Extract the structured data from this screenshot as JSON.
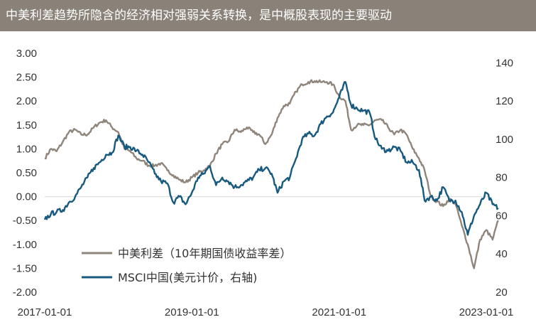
{
  "title": "中美利差趋势所隐含的经济相对强弱关系转换，是中概股表现的主要驱动",
  "chart_data": {
    "type": "line",
    "title": "中美利差趋势所隐含的经济相对强弱关系转换，是中概股表现的主要驱动",
    "x_ticks": [
      "2017-01-01",
      "2019-01-01",
      "2021-01-01",
      "2023-01-01"
    ],
    "x_range": [
      "2017-01-01",
      "2023-01-01"
    ],
    "y_left": {
      "range": [
        -2.0,
        3.0
      ],
      "ticks": [
        "3.00",
        "2.50",
        "2.00",
        "1.50",
        "1.00",
        "0.50",
        "0.00",
        "-0.50",
        "-1.00",
        "-1.50",
        "-2.00"
      ]
    },
    "y_right": {
      "range": [
        20,
        145
      ],
      "ticks": [
        "140",
        "120",
        "100",
        "80",
        "60",
        "40",
        "20"
      ]
    },
    "grid": false,
    "legend": "bottom-left",
    "series": [
      {
        "name": "中美利差（10年期国债收益率差）",
        "axis": "left",
        "color": "#8f857b",
        "points": [
          [
            "2017-01-01",
            0.8
          ],
          [
            "2017-02-01",
            1.0
          ],
          [
            "2017-03-01",
            0.95
          ],
          [
            "2017-04-01",
            1.15
          ],
          [
            "2017-05-01",
            1.35
          ],
          [
            "2017-06-01",
            1.4
          ],
          [
            "2017-07-01",
            1.3
          ],
          [
            "2017-08-01",
            1.3
          ],
          [
            "2017-09-01",
            1.45
          ],
          [
            "2017-10-01",
            1.55
          ],
          [
            "2017-11-01",
            1.6
          ],
          [
            "2017-12-01",
            1.45
          ],
          [
            "2018-01-01",
            1.35
          ],
          [
            "2018-02-01",
            1.0
          ],
          [
            "2018-03-01",
            0.95
          ],
          [
            "2018-04-01",
            0.8
          ],
          [
            "2018-05-01",
            0.75
          ],
          [
            "2018-06-01",
            0.65
          ],
          [
            "2018-07-01",
            0.65
          ],
          [
            "2018-08-01",
            0.7
          ],
          [
            "2018-09-01",
            0.55
          ],
          [
            "2018-10-01",
            0.45
          ],
          [
            "2018-11-01",
            0.35
          ],
          [
            "2018-12-01",
            0.3
          ],
          [
            "2019-01-01",
            0.4
          ],
          [
            "2019-02-01",
            0.5
          ],
          [
            "2019-03-01",
            0.55
          ],
          [
            "2019-04-01",
            0.65
          ],
          [
            "2019-05-01",
            0.9
          ],
          [
            "2019-06-01",
            1.1
          ],
          [
            "2019-07-01",
            1.15
          ],
          [
            "2019-08-01",
            1.4
          ],
          [
            "2019-09-01",
            1.35
          ],
          [
            "2019-10-01",
            1.45
          ],
          [
            "2019-11-01",
            1.35
          ],
          [
            "2019-12-01",
            1.3
          ],
          [
            "2020-01-01",
            1.1
          ],
          [
            "2020-02-01",
            1.3
          ],
          [
            "2020-03-01",
            1.65
          ],
          [
            "2020-04-01",
            1.9
          ],
          [
            "2020-05-01",
            1.95
          ],
          [
            "2020-06-01",
            2.2
          ],
          [
            "2020-07-01",
            2.35
          ],
          [
            "2020-08-01",
            2.4
          ],
          [
            "2020-09-01",
            2.42
          ],
          [
            "2020-10-01",
            2.4
          ],
          [
            "2020-11-01",
            2.4
          ],
          [
            "2020-12-01",
            2.35
          ],
          [
            "2021-01-01",
            2.1
          ],
          [
            "2021-02-01",
            2.0
          ],
          [
            "2021-03-01",
            1.4
          ],
          [
            "2021-04-01",
            1.5
          ],
          [
            "2021-05-01",
            1.5
          ],
          [
            "2021-06-01",
            1.5
          ],
          [
            "2021-07-01",
            1.6
          ],
          [
            "2021-08-01",
            1.6
          ],
          [
            "2021-09-01",
            1.45
          ],
          [
            "2021-10-01",
            1.3
          ],
          [
            "2021-11-01",
            1.4
          ],
          [
            "2021-12-01",
            1.3
          ],
          [
            "2022-01-01",
            1.0
          ],
          [
            "2022-02-01",
            0.8
          ],
          [
            "2022-03-01",
            0.55
          ],
          [
            "2022-04-01",
            0.0
          ],
          [
            "2022-05-01",
            -0.1
          ],
          [
            "2022-06-01",
            -0.2
          ],
          [
            "2022-07-01",
            -0.05
          ],
          [
            "2022-08-01",
            -0.15
          ],
          [
            "2022-09-01",
            -0.6
          ],
          [
            "2022-10-01",
            -1.0
          ],
          [
            "2022-11-01",
            -1.5
          ],
          [
            "2022-12-01",
            -0.9
          ],
          [
            "2023-01-01",
            -0.7
          ],
          [
            "2023-02-01",
            -0.9
          ],
          [
            "2023-03-01",
            -0.5
          ]
        ]
      },
      {
        "name": "MSCI中国(美元计价，右轴)",
        "axis": "right",
        "color": "#17597f",
        "points": [
          [
            "2017-01-01",
            58
          ],
          [
            "2017-02-01",
            61
          ],
          [
            "2017-03-01",
            62
          ],
          [
            "2017-04-01",
            63
          ],
          [
            "2017-05-01",
            67
          ],
          [
            "2017-06-01",
            70
          ],
          [
            "2017-07-01",
            75
          ],
          [
            "2017-08-01",
            80
          ],
          [
            "2017-09-01",
            85
          ],
          [
            "2017-10-01",
            88
          ],
          [
            "2017-11-01",
            92
          ],
          [
            "2017-12-01",
            93
          ],
          [
            "2018-01-01",
            102
          ],
          [
            "2018-02-01",
            96
          ],
          [
            "2018-03-01",
            96
          ],
          [
            "2018-04-01",
            94
          ],
          [
            "2018-05-01",
            92
          ],
          [
            "2018-06-01",
            88
          ],
          [
            "2018-07-01",
            82
          ],
          [
            "2018-08-01",
            78
          ],
          [
            "2018-09-01",
            77
          ],
          [
            "2018-10-01",
            67
          ],
          [
            "2018-11-01",
            70
          ],
          [
            "2018-12-01",
            66
          ],
          [
            "2019-01-01",
            72
          ],
          [
            "2019-02-01",
            80
          ],
          [
            "2019-03-01",
            82
          ],
          [
            "2019-04-01",
            86
          ],
          [
            "2019-05-01",
            76
          ],
          [
            "2019-06-01",
            80
          ],
          [
            "2019-07-01",
            78
          ],
          [
            "2019-08-01",
            75
          ],
          [
            "2019-09-01",
            76
          ],
          [
            "2019-10-01",
            78
          ],
          [
            "2019-11-01",
            80
          ],
          [
            "2019-12-01",
            84
          ],
          [
            "2020-01-01",
            85
          ],
          [
            "2020-02-01",
            82
          ],
          [
            "2020-03-01",
            72
          ],
          [
            "2020-04-01",
            78
          ],
          [
            "2020-05-01",
            80
          ],
          [
            "2020-06-01",
            90
          ],
          [
            "2020-07-01",
            100
          ],
          [
            "2020-08-01",
            103
          ],
          [
            "2020-09-01",
            102
          ],
          [
            "2020-10-01",
            108
          ],
          [
            "2020-11-01",
            112
          ],
          [
            "2020-12-01",
            114
          ],
          [
            "2021-01-01",
            122
          ],
          [
            "2021-02-01",
            130
          ],
          [
            "2021-03-01",
            118
          ],
          [
            "2021-04-01",
            116
          ],
          [
            "2021-05-01",
            115
          ],
          [
            "2021-06-01",
            114
          ],
          [
            "2021-07-01",
            100
          ],
          [
            "2021-08-01",
            95
          ],
          [
            "2021-09-01",
            94
          ],
          [
            "2021-10-01",
            96
          ],
          [
            "2021-11-01",
            94
          ],
          [
            "2021-12-01",
            88
          ],
          [
            "2022-01-01",
            88
          ],
          [
            "2022-02-01",
            84
          ],
          [
            "2022-03-01",
            68
          ],
          [
            "2022-04-01",
            70
          ],
          [
            "2022-05-01",
            68
          ],
          [
            "2022-06-01",
            75
          ],
          [
            "2022-07-01",
            68
          ],
          [
            "2022-08-01",
            68
          ],
          [
            "2022-09-01",
            62
          ],
          [
            "2022-10-01",
            50
          ],
          [
            "2022-11-01",
            60
          ],
          [
            "2022-12-01",
            66
          ],
          [
            "2023-01-01",
            72
          ],
          [
            "2023-02-01",
            66
          ],
          [
            "2023-03-01",
            64
          ]
        ]
      }
    ]
  }
}
